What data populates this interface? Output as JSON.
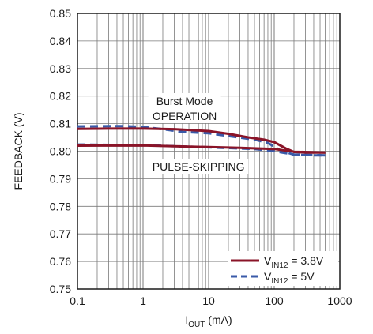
{
  "chart_data": {
    "type": "line",
    "xscale": "log",
    "xlim": [
      0.1,
      1000
    ],
    "ylim": [
      0.75,
      0.85
    ],
    "x_ticks": [
      "0.1",
      "1",
      "10",
      "100",
      "1000"
    ],
    "y_ticks": [
      "0.75",
      "0.76",
      "0.77",
      "0.78",
      "0.79",
      "0.80",
      "0.81",
      "0.82",
      "0.83",
      "0.84",
      "0.85"
    ],
    "xlabel": {
      "main": "I",
      "sub": "OUT",
      "rest": " (mA)"
    },
    "ylabel": "FEEDBACK (V)",
    "grid": true,
    "annotations": {
      "burst_line1": "Burst Mode",
      "burst_line2": "OPERATION",
      "pulse": "PULSE-SKIPPING"
    },
    "legend": {
      "placement": "bottom-right",
      "entries": [
        {
          "pre": "V",
          "sub": "IN12",
          "post": " = 3.8V",
          "style": "solid",
          "color": "#8a1428"
        },
        {
          "pre": "V",
          "sub": "IN12",
          "post": " = 5V",
          "style": "dashed",
          "color": "#3a5aa8"
        }
      ]
    },
    "series": [
      {
        "group": "3.8V",
        "style": "solid",
        "color": "#8a1428",
        "points": [
          [
            0.1,
            0.8081
          ],
          [
            0.3,
            0.8082
          ],
          [
            1,
            0.8082
          ],
          [
            3,
            0.808
          ],
          [
            10,
            0.8073
          ],
          [
            20,
            0.8063
          ],
          [
            40,
            0.805
          ],
          [
            70,
            0.8042
          ],
          [
            100,
            0.8033
          ],
          [
            150,
            0.801
          ],
          [
            200,
            0.7997
          ],
          [
            300,
            0.7995
          ],
          [
            600,
            0.7995
          ]
        ]
      },
      {
        "group": "3.8V",
        "style": "solid",
        "color": "#8a1428",
        "points": [
          [
            0.1,
            0.802
          ],
          [
            1,
            0.8021
          ],
          [
            3,
            0.8018
          ],
          [
            10,
            0.8015
          ],
          [
            30,
            0.8012
          ],
          [
            100,
            0.8008
          ],
          [
            200,
            0.7998
          ],
          [
            600,
            0.7995
          ]
        ]
      },
      {
        "group": "5V",
        "style": "dashed",
        "color": "#3a5aa8",
        "points": [
          [
            0.1,
            0.809
          ],
          [
            0.5,
            0.8091
          ],
          [
            1,
            0.8088
          ],
          [
            2,
            0.808
          ],
          [
            4,
            0.807
          ],
          [
            10,
            0.8065
          ],
          [
            20,
            0.8055
          ],
          [
            50,
            0.8042
          ],
          [
            80,
            0.803
          ],
          [
            120,
            0.8005
          ],
          [
            200,
            0.7987
          ],
          [
            400,
            0.7985
          ],
          [
            600,
            0.7985
          ]
        ]
      },
      {
        "group": "5V",
        "style": "dashed",
        "color": "#3a5aa8",
        "points": [
          [
            0.1,
            0.8024
          ],
          [
            1,
            0.8022
          ],
          [
            3,
            0.8018
          ],
          [
            10,
            0.8014
          ],
          [
            50,
            0.8008
          ],
          [
            100,
            0.8
          ],
          [
            200,
            0.7988
          ],
          [
            600,
            0.7985
          ]
        ]
      }
    ]
  }
}
